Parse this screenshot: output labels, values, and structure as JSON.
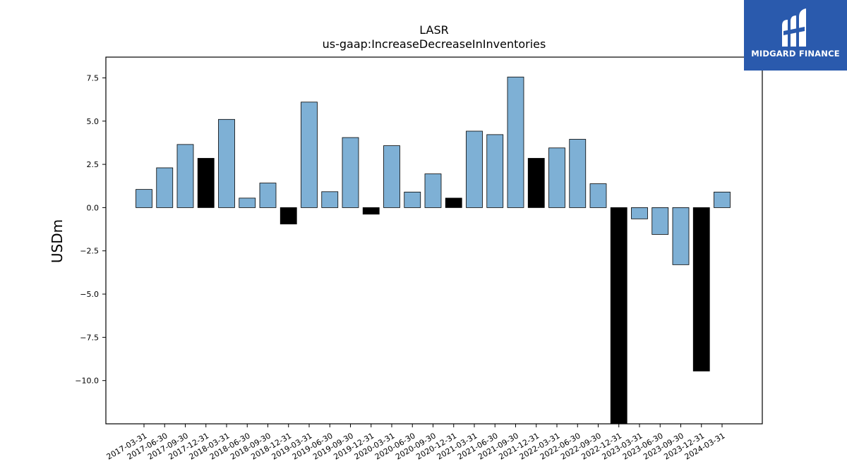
{
  "brand": {
    "name": "MIDGARD FINANCE",
    "logo_icon": "midgard-mark-icon",
    "background": "#2a5aad"
  },
  "chart_data": {
    "type": "bar",
    "title": "LASR",
    "subtitle": "us-gaap:IncreaseDecreaseInInventories",
    "xlabel": "",
    "ylabel": "USDm",
    "ylim": [
      -12.5,
      8.7
    ],
    "yticks": [
      7.5,
      5.0,
      2.5,
      0.0,
      -2.5,
      -5.0,
      -7.5,
      -10.0
    ],
    "ytick_labels": [
      "7.5",
      "5.0",
      "2.5",
      "0.0",
      "−2.5",
      "−5.0",
      "−7.5",
      "−10.0"
    ],
    "grid": false,
    "colors": {
      "quarterly": "#7eb0d5",
      "year_end": "#000000",
      "edge": "#000000"
    },
    "categories": [
      "2017-03-31",
      "2017-06-30",
      "2017-09-30",
      "2017-12-31",
      "2018-03-31",
      "2018-06-30",
      "2018-09-30",
      "2018-12-31",
      "2019-03-31",
      "2019-06-30",
      "2019-09-30",
      "2019-12-31",
      "2020-03-31",
      "2020-06-30",
      "2020-09-30",
      "2020-12-31",
      "2021-03-31",
      "2021-06-30",
      "2021-09-30",
      "2021-12-31",
      "2022-03-31",
      "2022-06-30",
      "2022-09-30",
      "2022-12-31",
      "2023-03-31",
      "2023-06-30",
      "2023-09-30",
      "2023-12-31",
      "2024-03-31"
    ],
    "values": [
      1.05,
      2.3,
      3.65,
      2.85,
      5.1,
      0.55,
      1.42,
      -0.95,
      6.1,
      0.92,
      4.05,
      -0.38,
      3.58,
      0.9,
      1.95,
      0.55,
      4.42,
      4.22,
      7.55,
      2.85,
      3.45,
      3.95,
      1.38,
      -12.6,
      -0.65,
      -1.55,
      -3.3,
      -9.45,
      0.9
    ]
  }
}
